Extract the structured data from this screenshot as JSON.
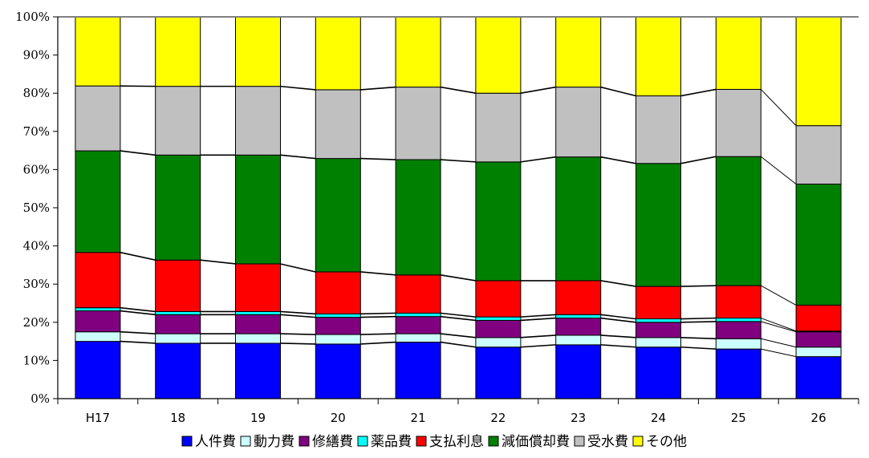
{
  "chart_data": {
    "type": "bar",
    "stacked": true,
    "percent": true,
    "categories": [
      "H17",
      "18",
      "19",
      "20",
      "21",
      "22",
      "23",
      "24",
      "25",
      "26"
    ],
    "y_ticks": [
      "0%",
      "10%",
      "20%",
      "30%",
      "40%",
      "50%",
      "60%",
      "70%",
      "80%",
      "90%",
      "100%"
    ],
    "ylim": [
      0,
      100
    ],
    "grid": false,
    "legend_position": "bottom",
    "series": [
      {
        "name": "人件費",
        "color": "#0000FF",
        "values": [
          15.0,
          14.5,
          14.5,
          14.3,
          14.8,
          13.5,
          14.1,
          13.5,
          13.0,
          11.0
        ]
      },
      {
        "name": "動力費",
        "color": "#CCFFFF",
        "values": [
          2.5,
          2.5,
          2.5,
          2.5,
          2.2,
          2.5,
          2.5,
          2.5,
          2.7,
          2.5
        ]
      },
      {
        "name": "修繕費",
        "color": "#800080",
        "values": [
          5.5,
          5.0,
          5.0,
          4.5,
          4.5,
          4.5,
          4.5,
          4.0,
          4.5,
          4.0
        ]
      },
      {
        "name": "薬品費",
        "color": "#00FFFF",
        "values": [
          0.8,
          0.8,
          0.8,
          0.9,
          0.9,
          0.9,
          0.9,
          0.9,
          0.9,
          0.2
        ]
      },
      {
        "name": "支払利息",
        "color": "#FF0000",
        "values": [
          14.5,
          13.5,
          12.5,
          11.0,
          10.0,
          9.5,
          8.9,
          8.5,
          8.5,
          6.8
        ]
      },
      {
        "name": "減価償却費",
        "color": "#008000",
        "values": [
          26.6,
          27.5,
          28.5,
          29.7,
          30.2,
          31.1,
          32.4,
          32.2,
          33.8,
          31.7
        ]
      },
      {
        "name": "受水費",
        "color": "#C0C0C0",
        "values": [
          17.0,
          18.0,
          18.0,
          18.0,
          19.0,
          18.0,
          18.3,
          17.7,
          17.6,
          15.3
        ]
      },
      {
        "name": "その他",
        "color": "#FFFF00",
        "values": [
          18.1,
          18.2,
          18.2,
          19.1,
          18.4,
          20.0,
          18.4,
          20.7,
          19.0,
          28.5
        ]
      }
    ]
  }
}
